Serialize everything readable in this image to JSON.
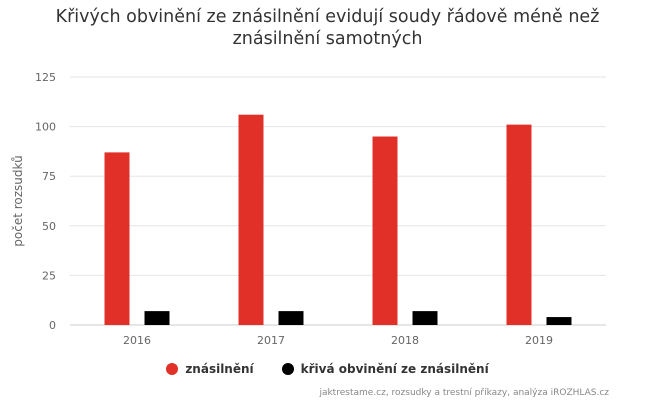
{
  "chart_data": {
    "type": "bar",
    "title_lines": [
      "Křivých obvinění ze znásilnění evidují soudy řádově méně než",
      "znásilnění samotných"
    ],
    "ylabel": "počet rozsudků",
    "xlabel": "",
    "ylim": [
      0,
      125
    ],
    "yticks": [
      0,
      25,
      50,
      75,
      100,
      125
    ],
    "grid": true,
    "categories": [
      "2016",
      "2017",
      "2018",
      "2019"
    ],
    "series": [
      {
        "name": "znásilnění",
        "color": "#e03028",
        "values": [
          87,
          106,
          95,
          101
        ]
      },
      {
        "name": "křivá obvinění ze znásilnění",
        "color": "#000000",
        "values": [
          7,
          7,
          7,
          4
        ]
      }
    ],
    "legend_position": "bottom-center",
    "credits": "jaktrestame.cz, rozsudky a trestní příkazy, analýza iROZHLAS.cz"
  }
}
